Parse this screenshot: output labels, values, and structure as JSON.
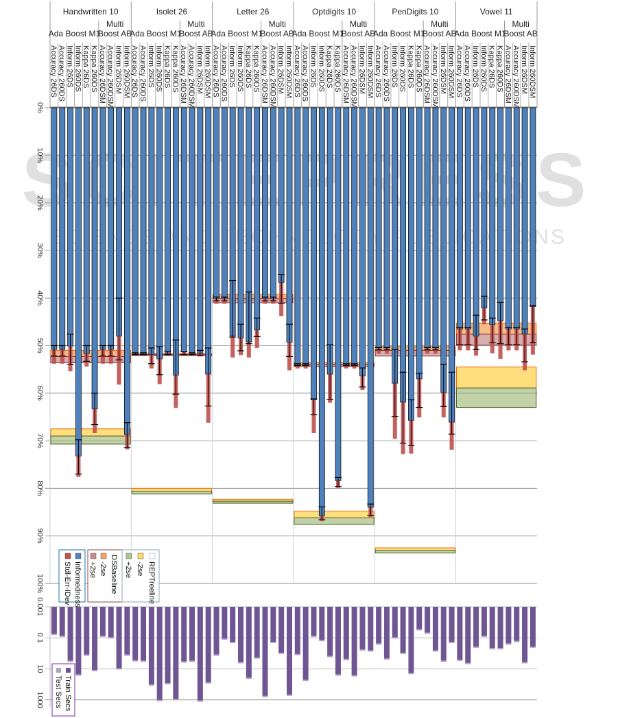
{
  "chart_data": [
    {
      "type": "bar",
      "title": "",
      "orientation": "inverted-y (0% at top, bars hang downward)",
      "ylabel": "",
      "ylim": [
        0,
        100
      ],
      "yticks": [
        "0%",
        "10%",
        "20%",
        "30%",
        "40%",
        "50%",
        "60%",
        "70%",
        "80%",
        "90%",
        "100%"
      ],
      "grid": true,
      "datasets": [
        {
          "name": "Handwritten 10",
          "informedness": [
            50.8,
            50.8,
            50.1,
            73.2,
            51.7,
            63.3,
            50.8,
            50.8,
            48.0,
            68.7
          ],
          "stderr_low": [
            50.0,
            50.0,
            47.6,
            69.8,
            50.0,
            60.0,
            50.0,
            50.0,
            40.0,
            66.2
          ],
          "stderr_high": [
            52.2,
            52.2,
            54.0,
            77.0,
            53.3,
            66.6,
            52.2,
            52.2,
            53.0,
            71.4
          ],
          "stddev_high": [
            53.8,
            53.8,
            55.4,
            77.6,
            54.4,
            68.4,
            53.8,
            53.8,
            58.2,
            71.8
          ],
          "dsbaseline": {
            "minus2se": 51.0,
            "mean": 52.3,
            "plus2se": 53.6
          },
          "reptree": {
            "minus2se": 67.5,
            "mean": 69.0,
            "plus2se": 70.7
          }
        },
        {
          "name": "Isolet 26",
          "informedness": [
            51.8,
            51.8,
            51.9,
            52.8,
            51.6,
            56.2,
            51.3,
            51.8,
            51.6,
            56.0
          ],
          "stderr_low": [
            51.5,
            51.5,
            50.5,
            50.2,
            51.2,
            48.8,
            51.3,
            51.5,
            51.0,
            50.5
          ],
          "stderr_high": [
            51.9,
            51.9,
            53.8,
            56.1,
            51.9,
            60.2,
            51.9,
            51.9,
            52.0,
            62.7
          ],
          "stddev_high": [
            51.9,
            51.9,
            54.8,
            58.1,
            52.0,
            63.1,
            51.9,
            51.9,
            52.3,
            66.2
          ],
          "dsbaseline": {
            "minus2se": 51.7,
            "mean": 51.8,
            "plus2se": 51.9
          },
          "reptree": {
            "minus2se": 80.0,
            "mean": 80.6,
            "plus2se": 81.2
          }
        },
        {
          "name": "Letter 26",
          "informedness": [
            40.1,
            40.1,
            47.9,
            48.4,
            49.2,
            46.7,
            40.1,
            40.1,
            36.7,
            49.3
          ],
          "stderr_low": [
            39.8,
            39.8,
            36.3,
            45.5,
            38.7,
            44.2,
            39.8,
            39.8,
            35.0,
            45.5
          ],
          "stderr_high": [
            40.6,
            40.6,
            48.2,
            51.1,
            49.6,
            48.1,
            40.6,
            40.6,
            41.1,
            52.3
          ],
          "stddev_high": [
            41.2,
            41.2,
            52.5,
            52.0,
            52.5,
            50.5,
            41.2,
            41.2,
            43.8,
            55.2
          ],
          "dsbaseline": {
            "minus2se": 39.2,
            "mean": 40.1,
            "plus2se": 41.0
          },
          "reptree": {
            "minus2se": 82.3,
            "mean": 82.7,
            "plus2se": 83.1
          }
        },
        {
          "name": "Optdigits 10",
          "informedness": [
            54.0,
            54.0,
            61.4,
            85.8,
            56.0,
            78.4,
            54.0,
            54.0,
            56.4,
            84.0
          ],
          "stderr_low": [
            53.8,
            53.8,
            61.2,
            83.9,
            49.8,
            77.7,
            53.8,
            53.8,
            54.7,
            83.3
          ],
          "stderr_high": [
            54.2,
            54.2,
            64.5,
            86.6,
            61.3,
            79.6,
            54.2,
            54.2,
            58.7,
            85.7
          ],
          "stddev_high": [
            54.8,
            54.8,
            68.4,
            86.9,
            62.0,
            79.9,
            54.8,
            54.8,
            59.3,
            86.0
          ],
          "dsbaseline": {
            "minus2se": 53.6,
            "mean": 54.0,
            "plus2se": 54.4
          },
          "reptree": {
            "minus2se": 84.8,
            "mean": 86.2,
            "plus2se": 87.6
          }
        },
        {
          "name": "PenDigits 10",
          "informedness": [
            50.5,
            50.5,
            57.9,
            61.9,
            65.7,
            57.0,
            50.5,
            50.5,
            59.8,
            66.1
          ],
          "stderr_low": [
            50.4,
            50.4,
            50.8,
            55.6,
            61.4,
            55.8,
            50.4,
            50.4,
            53.9,
            55.6
          ],
          "stderr_high": [
            50.9,
            50.9,
            64.9,
            70.5,
            71.0,
            63.0,
            50.9,
            50.9,
            62.8,
            68.6
          ],
          "stddev_high": [
            51.7,
            51.7,
            69.6,
            72.8,
            72.7,
            65.1,
            51.7,
            51.7,
            65.1,
            71.9
          ],
          "dsbaseline": {
            "minus2se": 50.2,
            "mean": 51.0,
            "plus2se": 52.2
          },
          "reptree": {
            "minus2se": 92.5,
            "mean": 93.0,
            "plus2se": 93.6
          }
        },
        {
          "name": "Vowel 11",
          "informedness": [
            46.5,
            46.5,
            48.0,
            42.1,
            45.6,
            44.8,
            46.5,
            46.5,
            47.6,
            41.8
          ],
          "stderr_low": [
            46.2,
            46.2,
            43.6,
            39.6,
            44.2,
            40.9,
            46.2,
            46.2,
            46.5,
            41.6
          ],
          "stderr_high": [
            49.8,
            49.8,
            50.8,
            44.6,
            49.4,
            49.6,
            49.8,
            49.8,
            53.4,
            49.4
          ],
          "stddev_high": [
            51.0,
            51.0,
            52.1,
            45.5,
            51.6,
            52.8,
            51.0,
            51.0,
            55.2,
            51.9
          ],
          "dsbaseline": {
            "minus2se": 45.3,
            "mean": 47.6,
            "plus2se": 49.9
          },
          "reptree": {
            "minus2se": 54.5,
            "mean": 58.9,
            "plus2se": 63.0
          }
        }
      ],
      "algorithm_groups": [
        {
          "label_line1": "",
          "label_line2": "Ada Boost M1",
          "columns": 6
        },
        {
          "label_line1": "Multi",
          "label_line2": "Boost AB",
          "columns": 4
        }
      ],
      "column_labels": [
        "Accuracy 26DS",
        "Accuracy 260DS",
        "Inform 26DS",
        "Inform 260DS",
        "Kappa 26DS",
        "Kappa 260DS",
        "Accuracy 26DSM",
        "Accuracy 260DSM",
        "Inform 26DSM",
        "Inform 260DSM"
      ],
      "legend": [
        {
          "group": "",
          "items": [
            {
              "label": "Informedness",
              "color": "#4f81bd"
            },
            {
              "label": "Stdl-Err-IDev",
              "color": "#c0504d"
            }
          ]
        },
        {
          "group": "DSBaseline",
          "items": [
            {
              "label": "-2se",
              "color": "#f4a460"
            },
            {
              "label": "+2se",
              "color": "#c98a8a"
            }
          ]
        },
        {
          "group": "REPTreeline",
          "items": [
            {
              "label": "-2se",
              "color": "#ffd966"
            },
            {
              "label": "+2se",
              "color": "#b5c78e"
            }
          ]
        }
      ],
      "legend_placement": "bottom-left",
      "colors": {
        "informedness": "#4f81bd",
        "stderr": "#c0504d",
        "dsbaseline_lo": "#f4a460",
        "dsbaseline_hi": "#c98a8a",
        "reptree_lo": "#ffd966",
        "reptree_hi": "#b5c78e"
      }
    },
    {
      "type": "bar",
      "title": "",
      "scale": "log (inverted, bars hang downward)",
      "ylim": [
        0.001,
        1000
      ],
      "yticks": [
        "0.001",
        "0.1",
        "10",
        "1000"
      ],
      "grid": true,
      "series": [
        {
          "name": "Train Secs",
          "color": "#6f5693",
          "values": [
            [
              0.06,
              0.08,
              3.2,
              25,
              1.3,
              13,
              0.08,
              0.1,
              10,
              1.3
            ],
            [
              3,
              3.2,
              110,
              1100,
              90,
              950,
              3.6,
              3.2,
              1200,
              80
            ],
            [
              1.3,
              0.12,
              0.2,
              4,
              40,
              2,
              600,
              0.2,
              1,
              500
            ],
            [
              1.2,
              55,
              0.08,
              0.15,
              1.6,
              25,
              2.5,
              28,
              0.6,
              0.7
            ],
            [
              0.25,
              2.3,
              0.1,
              1,
              20,
              0.03,
              0.05,
              0.7,
              3.2,
              0.2
            ],
            [
              2.8,
              4.5,
              0.4,
              0.08,
              0.5,
              0.5,
              0.25,
              0.17,
              4,
              0.4
            ]
          ]
        },
        {
          "name": "Test Secs",
          "color": "#b0a2c8",
          "values": "small overlay on bar ends"
        }
      ],
      "legend": [
        {
          "label": "Train Secs",
          "color": "#6f5693"
        },
        {
          "label": "Test Secs",
          "color": "#b0a2c8"
        }
      ],
      "legend_placement": "bottom-left"
    }
  ],
  "watermark": {
    "line1": "SCITEPRESS",
    "line2": "SCIENCE AND TECHNOLOGY PUBLICATIONS"
  }
}
